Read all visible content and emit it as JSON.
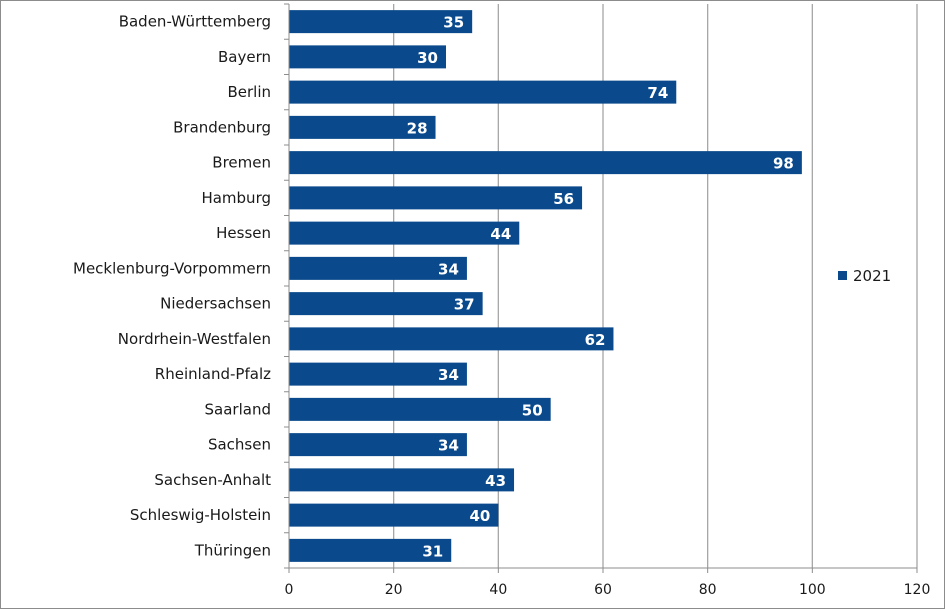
{
  "chart_data": {
    "type": "bar",
    "orientation": "horizontal",
    "categories": [
      "Baden-Württemberg",
      "Bayern",
      "Berlin",
      "Brandenburg",
      "Bremen",
      "Hamburg",
      "Hessen",
      "Mecklenburg-Vorpommern",
      "Niedersachsen",
      "Nordrhein-Westfalen",
      "Rheinland-Pfalz",
      "Saarland",
      "Sachsen",
      "Sachsen-Anhalt",
      "Schleswig-Holstein",
      "Thüringen"
    ],
    "series": [
      {
        "name": "2021",
        "values": [
          35,
          30,
          74,
          28,
          98,
          56,
          44,
          34,
          37,
          62,
          34,
          50,
          34,
          43,
          40,
          31
        ]
      }
    ],
    "xlim": [
      0,
      120
    ],
    "xticks": [
      0,
      20,
      40,
      60,
      80,
      100,
      120
    ],
    "grid": "vertical",
    "legend": "right",
    "data_labels": true,
    "colors": {
      "bar": "#0a4a8c",
      "grid": "#a6a6a6",
      "axis": "#8c8c8c"
    }
  }
}
